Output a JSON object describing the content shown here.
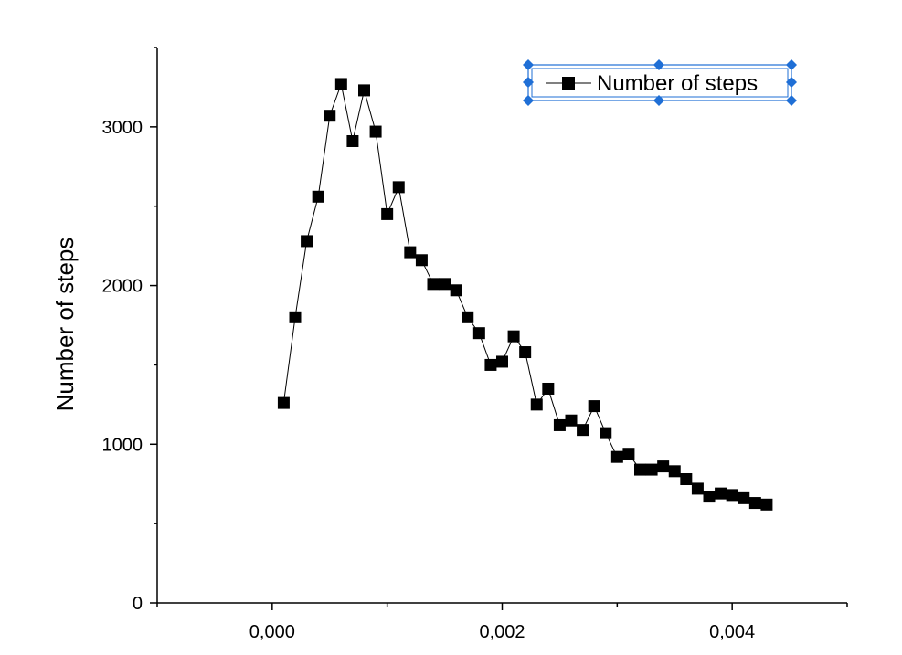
{
  "chart_data": {
    "type": "line",
    "title": "",
    "xlabel": "",
    "ylabel": "Number of steps",
    "xlim": [
      -0.001,
      0.005
    ],
    "ylim": [
      0,
      3500
    ],
    "x_ticks": [
      {
        "value": 0.0,
        "label": "0,000"
      },
      {
        "value": 0.002,
        "label": "0,002"
      },
      {
        "value": 0.004,
        "label": "0,004"
      }
    ],
    "y_ticks": [
      {
        "value": 0,
        "label": "0"
      },
      {
        "value": 1000,
        "label": "1000"
      },
      {
        "value": 2000,
        "label": "2000"
      },
      {
        "value": 3000,
        "label": "3000"
      }
    ],
    "grid": false,
    "legend": {
      "position": "top-right",
      "selected": true
    },
    "series": [
      {
        "name": "Number of steps",
        "color": "#000000",
        "marker": "square",
        "x": [
          0.0001,
          0.0002,
          0.0003,
          0.0004,
          0.0005,
          0.0006,
          0.0007,
          0.0008,
          0.0009,
          0.001,
          0.0011,
          0.0012,
          0.0013,
          0.0014,
          0.0015,
          0.0016,
          0.0017,
          0.0018,
          0.0019,
          0.002,
          0.0021,
          0.0022,
          0.0023,
          0.0024,
          0.0025,
          0.0026,
          0.0027,
          0.0028,
          0.0029,
          0.003,
          0.0031,
          0.0032,
          0.0033,
          0.0034,
          0.0035,
          0.0036,
          0.0037,
          0.0038,
          0.0039,
          0.004,
          0.0041,
          0.0042,
          0.0043
        ],
        "y": [
          1260,
          1800,
          2280,
          2560,
          3070,
          3270,
          2910,
          3230,
          2970,
          2450,
          2620,
          2210,
          2160,
          2010,
          2010,
          1970,
          1800,
          1700,
          1500,
          1520,
          1680,
          1580,
          1250,
          1350,
          1120,
          1150,
          1090,
          1240,
          1070,
          920,
          940,
          840,
          840,
          860,
          830,
          780,
          720,
          670,
          690,
          680,
          660,
          630,
          620
        ]
      }
    ]
  },
  "colors": {
    "handle": "#1f6fd6",
    "series": "#000000"
  }
}
